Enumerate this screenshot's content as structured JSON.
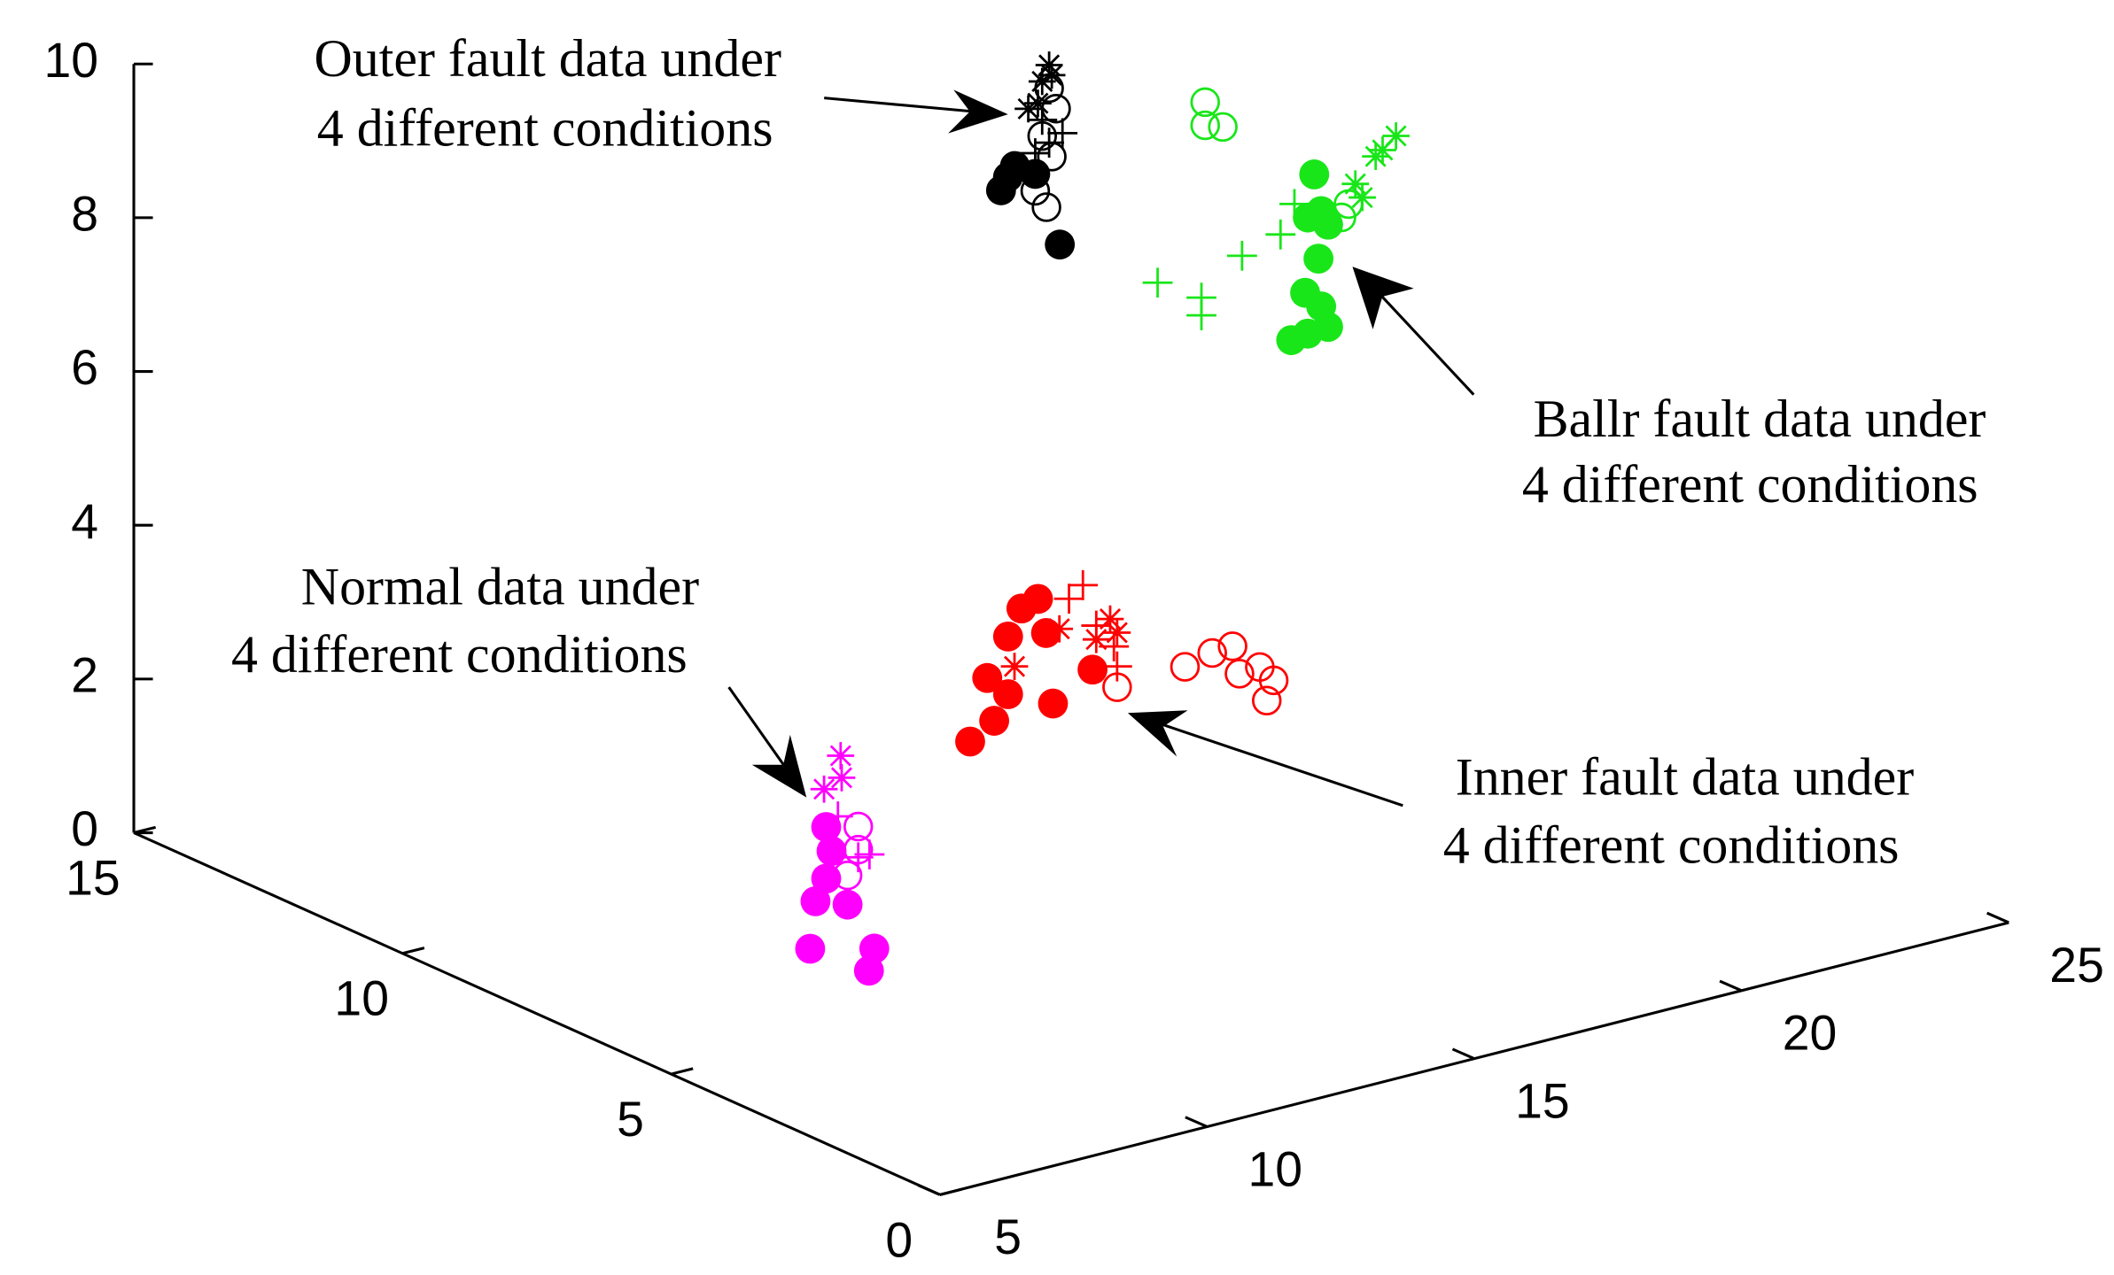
{
  "chart_data": {
    "type": "scatter3d",
    "xlim": [
      5,
      25
    ],
    "xticks": [
      5,
      10,
      15,
      20,
      25
    ],
    "ylim": [
      0,
      15
    ],
    "yticks": [
      0,
      5,
      10,
      15
    ],
    "zlim": [
      0,
      10
    ],
    "zticks": [
      0,
      2,
      4,
      6,
      8,
      10
    ],
    "annotations": [
      {
        "lines": [
          "Outer fault data under",
          "4 different conditions"
        ]
      },
      {
        "lines": [
          "Ballr fault data under",
          "4 different conditions"
        ]
      },
      {
        "lines": [
          "Normal data under",
          "4 different conditions"
        ]
      },
      {
        "lines": [
          "Inner fault data under",
          "4 different conditions"
        ]
      }
    ],
    "series": [
      {
        "color": "#ff00ff",
        "marker": "filled-circle",
        "x": [
          7.9,
          8.0,
          7.9,
          7.7,
          8.3,
          7.6,
          8.8,
          8.7
        ],
        "y": [
          5,
          5,
          5,
          5,
          5,
          5,
          5,
          5
        ],
        "z": [
          2.7,
          2.37,
          2.03,
          1.77,
          1.62,
          1.17,
          0.96,
          0.69
        ]
      },
      {
        "color": "#ff00ff",
        "marker": "open-circle",
        "x": [
          8.5,
          8.5,
          8.3
        ],
        "y": [
          5,
          5,
          5
        ],
        "z": [
          2.6,
          2.3,
          2.0
        ]
      },
      {
        "color": "#ff00ff",
        "marker": "plus",
        "x": [
          8.5,
          8.71,
          8.12
        ],
        "y": [
          5,
          5,
          5
        ],
        "z": [
          2.2,
          2.2,
          2.8
        ]
      },
      {
        "color": "#ff00ff",
        "marker": "asterisk",
        "x": [
          8.17,
          7.86,
          8.19
        ],
        "y": [
          5,
          5,
          5
        ],
        "z": [
          3.58,
          3.2,
          3.29
        ]
      },
      {
        "color": "#ff0000",
        "marker": "open-circle",
        "x": [
          17.63,
          18.14,
          18.52,
          19.03,
          19.16,
          18.65,
          16.36,
          19.29
        ],
        "y": [
          8,
          8,
          8,
          8,
          8,
          8,
          8,
          8
        ],
        "z": [
          2.12,
          2.21,
          2.23,
          1.87,
          1.41,
          1.85,
          2.08,
          1.65
        ]
      },
      {
        "color": "#ff0000",
        "marker": "plus",
        "x": [
          15.72,
          15.46,
          16.3,
          16.36,
          15.97
        ],
        "y": [
          8,
          8,
          8,
          8,
          8
        ],
        "z": [
          3.52,
          3.39,
          2.62,
          2.35,
          2.95
        ]
      },
      {
        "color": "#ff0000",
        "marker": "asterisk",
        "x": [
          16.23,
          16.36,
          15.97,
          14.44,
          15.28
        ],
        "y": [
          8,
          8,
          8,
          8,
          8
        ],
        "z": [
          2.99,
          2.79,
          2.77,
          2.69,
          3.03
        ]
      },
      {
        "color": "#ff0000",
        "marker": "filled-circle",
        "x": [
          13.61,
          14.06,
          13.93,
          14.32,
          14.88,
          14.57,
          15.03,
          15.16,
          15.9,
          14.32
        ],
        "y": [
          8,
          8,
          8,
          8,
          8,
          8,
          8,
          8,
          8,
          8
        ],
        "z": [
          1.86,
          2.05,
          2.63,
          3.1,
          3.49,
          3.42,
          3.02,
          2.08,
          2.39,
          2.35
        ]
      },
      {
        "color": "#000000",
        "marker": "open-circle",
        "x": [
          19.11,
          19.24,
          18.98,
          19.06,
          18.85,
          19.16
        ],
        "y": [
          12,
          12,
          12,
          12,
          12,
          12
        ],
        "z": [
          8.13,
          7.84,
          7.53,
          6.59,
          6.84,
          7.23
        ]
      },
      {
        "color": "#000000",
        "marker": "plus",
        "x": [
          19.36,
          18.98,
          18.85,
          19.11
        ],
        "y": [
          12,
          12,
          12,
          12
        ],
        "z": [
          7.5,
          7.74,
          7.33,
          7.42
        ]
      },
      {
        "color": "#000000",
        "marker": "asterisk",
        "x": [
          19.11,
          18.98,
          18.9,
          18.72,
          19.16
        ],
        "y": [
          12,
          12,
          12,
          12,
          12
        ],
        "z": [
          8.43,
          8.24,
          7.97,
          7.93,
          8.29
        ]
      },
      {
        "color": "#000000",
        "marker": "filled-circle",
        "x": [
          18.21,
          18.47,
          18.34,
          19.31,
          18.85
        ],
        "y": [
          12,
          12,
          12,
          12,
          12
        ],
        "z": [
          6.96,
          7.23,
          7.11,
          6.06,
          7.06
        ]
      },
      {
        "color": "#19e619",
        "marker": "open-circle",
        "x": [
          22.03,
          22.03,
          22.36,
          24.58,
          24.71
        ],
        "y": [
          12,
          12,
          12,
          12,
          12
        ],
        "z": [
          7.43,
          7.13,
          7.05,
          5.48,
          5.63
        ]
      },
      {
        "color": "#19e619",
        "marker": "plus",
        "x": [
          21.14,
          22.72,
          23.44,
          21.96,
          21.96,
          23.7
        ],
        "y": [
          12,
          12,
          12,
          12,
          12,
          12
        ],
        "z": [
          5.24,
          5.31,
          5.46,
          4.9,
          4.67,
          5.81
        ]
      },
      {
        "color": "#19e619",
        "marker": "asterisk",
        "x": [
          25.6,
          25.22,
          24.84,
          24.97,
          25.35
        ],
        "y": [
          12,
          12,
          12,
          12,
          12
        ],
        "z": [
          6.36,
          6.16,
          5.87,
          5.67,
          6.22
        ]
      },
      {
        "color": "#19e619",
        "marker": "filled-circle",
        "x": [
          24.07,
          24.2,
          23.95,
          24.33,
          24.15,
          23.9,
          23.64,
          23.95,
          24.33,
          24.2
        ],
        "y": [
          12,
          12,
          12,
          12,
          12,
          12,
          12,
          12,
          12,
          12
        ],
        "z": [
          6.13,
          5.63,
          5.59,
          5.43,
          5.02,
          4.62,
          4.05,
          4.08,
          4.1,
          4.39
        ]
      }
    ]
  }
}
